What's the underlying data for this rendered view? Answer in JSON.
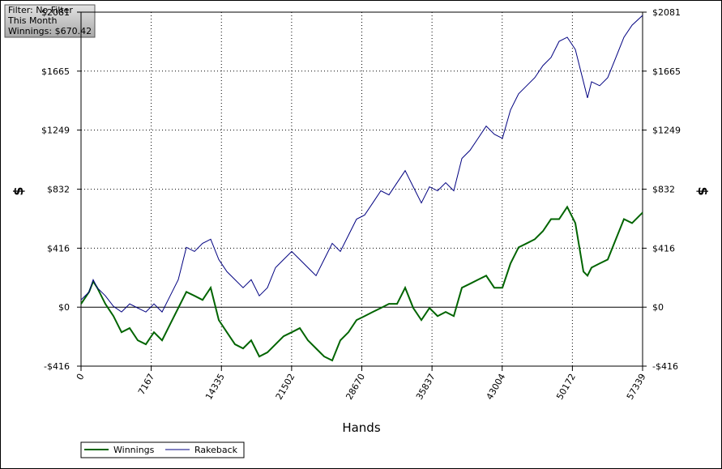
{
  "filter_box": {
    "lines": [
      "Filter: No Filter",
      "This Month",
      "Winnings: $670.42"
    ]
  },
  "chart_data": {
    "type": "line",
    "xlabel": "Hands",
    "ylabel": "$",
    "y2label": "$",
    "xlim": [
      0,
      57339
    ],
    "xticks": [
      0,
      7167,
      14335,
      21502,
      28670,
      35837,
      43004,
      50172,
      57339
    ],
    "ylim": [
      -416,
      2081
    ],
    "yticks": [
      {
        "value": -416,
        "label": "-$416"
      },
      {
        "value": 0,
        "label": "$0"
      },
      {
        "value": 416,
        "label": "$416"
      },
      {
        "value": 832,
        "label": "$832"
      },
      {
        "value": 1249,
        "label": "$1249"
      },
      {
        "value": 1665,
        "label": "$1665"
      },
      {
        "value": 2081,
        "label": "$2081"
      }
    ],
    "grid": true,
    "x": [
      0,
      827,
      1241,
      1655,
      2482,
      3310,
      4137,
      4964,
      5792,
      6619,
      7447,
      8274,
      9101,
      9929,
      10756,
      11584,
      12411,
      13238,
      14066,
      14893,
      15721,
      16548,
      17375,
      18203,
      19030,
      19858,
      20685,
      21512,
      22340,
      23167,
      23995,
      24822,
      25649,
      26477,
      27304,
      28132,
      28959,
      29786,
      30614,
      31441,
      32269,
      33096,
      33923,
      34751,
      35578,
      36406,
      37233,
      38060,
      38888,
      39715,
      40543,
      41370,
      42197,
      43025,
      43852,
      44680,
      45507,
      46334,
      47162,
      47989,
      48817,
      49644,
      50471,
      51299,
      51712,
      52126,
      52954,
      53781,
      54608,
      55436,
      56263,
      57339
    ],
    "series": [
      {
        "name": "Winnings",
        "color": "#006400",
        "values": [
          23,
          108,
          182,
          137,
          23,
          -63,
          -177,
          -148,
          -234,
          -262,
          -177,
          -234,
          -120,
          -6,
          108,
          80,
          51,
          137,
          -91,
          -177,
          -262,
          -291,
          -234,
          -348,
          -319,
          -262,
          -205,
          -177,
          -148,
          -234,
          -291,
          -348,
          -376,
          -234,
          -177,
          -91,
          -63,
          -34,
          -6,
          23,
          23,
          137,
          -6,
          -91,
          -6,
          -63,
          -34,
          -63,
          137,
          165,
          194,
          222,
          137,
          137,
          308,
          422,
          450,
          479,
          536,
          621,
          621,
          707,
          593,
          251,
          222,
          279,
          308,
          336,
          479,
          621,
          593,
          667
        ]
      },
      {
        "name": "Rakeback",
        "color": "#000080",
        "values": [
          51,
          108,
          194,
          137,
          80,
          6,
          -34,
          23,
          -6,
          -34,
          23,
          -34,
          80,
          194,
          422,
          393,
          450,
          479,
          336,
          251,
          194,
          137,
          194,
          80,
          137,
          279,
          336,
          393,
          336,
          279,
          222,
          336,
          450,
          393,
          507,
          621,
          650,
          735,
          821,
          792,
          878,
          963,
          849,
          735,
          849,
          821,
          878,
          821,
          1049,
          1106,
          1191,
          1277,
          1220,
          1191,
          1391,
          1505,
          1562,
          1619,
          1704,
          1761,
          1875,
          1904,
          1818,
          1590,
          1476,
          1590,
          1562,
          1619,
          1761,
          1904,
          1989,
          2058
        ]
      }
    ]
  }
}
